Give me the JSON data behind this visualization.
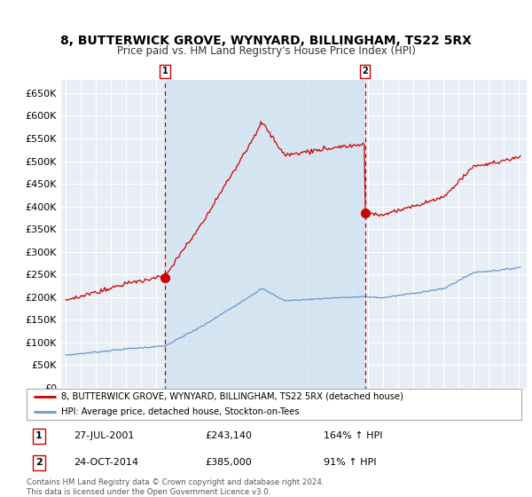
{
  "title": "8, BUTTERWICK GROVE, WYNYARD, BILLINGHAM, TS22 5RX",
  "subtitle": "Price paid vs. HM Land Registry's House Price Index (HPI)",
  "background_color": "#ffffff",
  "plot_bg_color": "#e8eef5",
  "grid_color": "#ffffff",
  "legend_label_red": "8, BUTTERWICK GROVE, WYNYARD, BILLINGHAM, TS22 5RX (detached house)",
  "legend_label_blue": "HPI: Average price, detached house, Stockton-on-Tees",
  "sale1_date": "27-JUL-2001",
  "sale1_price": "£243,140",
  "sale1_hpi": "164% ↑ HPI",
  "sale1_year": 2001.57,
  "sale2_date": "24-OCT-2014",
  "sale2_price": "£385,000",
  "sale2_hpi": "91% ↑ HPI",
  "sale2_year": 2014.8,
  "sale1_val": 243140,
  "sale2_val": 385000,
  "footer": "Contains HM Land Registry data © Crown copyright and database right 2024.\nThis data is licensed under the Open Government Licence v3.0.",
  "yticks": [
    0,
    50000,
    100000,
    150000,
    200000,
    250000,
    300000,
    350000,
    400000,
    450000,
    500000,
    550000,
    600000,
    650000
  ],
  "shade_color": "#cce0f0",
  "red_color": "#cc0000",
  "blue_color": "#6699cc"
}
